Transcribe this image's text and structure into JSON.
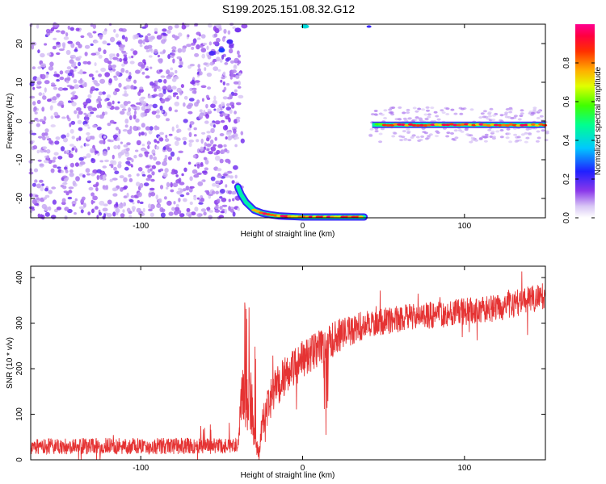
{
  "title": "S199.2025.151.08.32.G12",
  "chart_data": [
    {
      "type": "heatmap",
      "title": "S199.2025.151.08.32.G12",
      "xlabel": "Height of straight line (km)",
      "ylabel": "Frequency (Hz)",
      "xlim": [
        -168,
        150
      ],
      "ylim": [
        -25,
        25
      ],
      "xticks": [
        -100,
        0,
        100
      ],
      "yticks": [
        -20,
        -10,
        0,
        10,
        20
      ],
      "colorbar": {
        "label": "Normalized spectral amplitude",
        "range": [
          0,
          1
        ],
        "ticks": [
          0,
          0.2,
          0.4,
          0.6,
          0.8
        ],
        "colormap": "rainbow (white-violet-blue-cyan-green-yellow-red-magenta)"
      },
      "grid": false,
      "legend": "none",
      "features": [
        {
          "region": "noise speckle",
          "x_range": [
            -168,
            -40
          ],
          "freq_range": [
            -25,
            25
          ],
          "amplitude": 0.08
        },
        {
          "region": "downgoing branch",
          "x_points": [
            -40,
            -38,
            -35,
            -30,
            -25,
            -20,
            -15,
            -10,
            -5,
            0,
            10,
            20,
            30,
            38
          ],
          "freq_points": [
            -17,
            -19,
            -21,
            -23,
            -23.8,
            -24.2,
            -24.5,
            -24.6,
            -24.7,
            -24.8,
            -24.8,
            -24.8,
            -24.8,
            -24.8
          ],
          "amplitude": 0.85
        },
        {
          "region": "zero-frequency line",
          "x_range": [
            43,
            150
          ],
          "freq": -1,
          "amplitude": 0.9
        }
      ]
    },
    {
      "type": "line",
      "xlabel": "Height of straight line (km)",
      "ylabel": "SNR (10 * v/v)",
      "xlim": [
        -168,
        150
      ],
      "ylim": [
        0,
        425
      ],
      "xticks": [
        -100,
        0,
        100
      ],
      "yticks": [
        0,
        100,
        200,
        300,
        400
      ],
      "grid": false,
      "legend": "none",
      "series": [
        {
          "color": "#e53333",
          "x": [
            -168,
            -140,
            -110,
            -80,
            -50,
            -40,
            -37,
            -35,
            -33,
            -31,
            -29,
            -27,
            -25,
            -22,
            -18,
            -12,
            -5,
            0,
            10,
            20,
            30,
            40,
            60,
            80,
            100,
            120,
            140,
            150
          ],
          "y": [
            30,
            30,
            30,
            30,
            31,
            38,
            155,
            140,
            120,
            130,
            40,
            15,
            80,
            110,
            150,
            180,
            205,
            220,
            245,
            268,
            285,
            298,
            310,
            318,
            325,
            333,
            352,
            360
          ],
          "noise": [
            18,
            18,
            18,
            18,
            18,
            20,
            60,
            80,
            70,
            90,
            30,
            15,
            30,
            40,
            45,
            45,
            45,
            42,
            40,
            40,
            35,
            30,
            30,
            30,
            30,
            30,
            30,
            30
          ]
        }
      ]
    }
  ]
}
